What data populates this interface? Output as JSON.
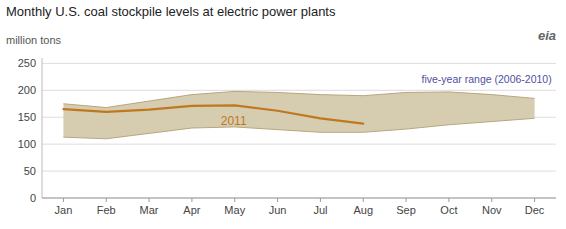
{
  "chart_data": {
    "type": "line",
    "title": "Monthly U.S. coal stockpile levels at electric power plants",
    "y_label": "million tons",
    "annotations": [
      {
        "text": "eia"
      }
    ],
    "categories": [
      "Jan",
      "Feb",
      "Mar",
      "Apr",
      "May",
      "Jun",
      "Jul",
      "Aug",
      "Sep",
      "Oct",
      "Nov",
      "Dec"
    ],
    "series": [
      {
        "name": "2011",
        "color": "#c07820",
        "values": [
          165,
          160,
          164,
          171,
          172,
          162,
          148,
          138,
          null,
          null,
          null,
          null
        ]
      }
    ],
    "band": {
      "name": "five-year range (2006-2010)",
      "color": "#d6cdb0",
      "upper": [
        175,
        168,
        180,
        192,
        198,
        196,
        192,
        190,
        196,
        197,
        192,
        185
      ],
      "lower": [
        113,
        110,
        120,
        130,
        132,
        127,
        122,
        122,
        128,
        136,
        142,
        148
      ]
    },
    "ylim": [
      0,
      260
    ],
    "yticks": [
      0,
      50,
      100,
      150,
      200,
      250
    ],
    "grid": true
  }
}
